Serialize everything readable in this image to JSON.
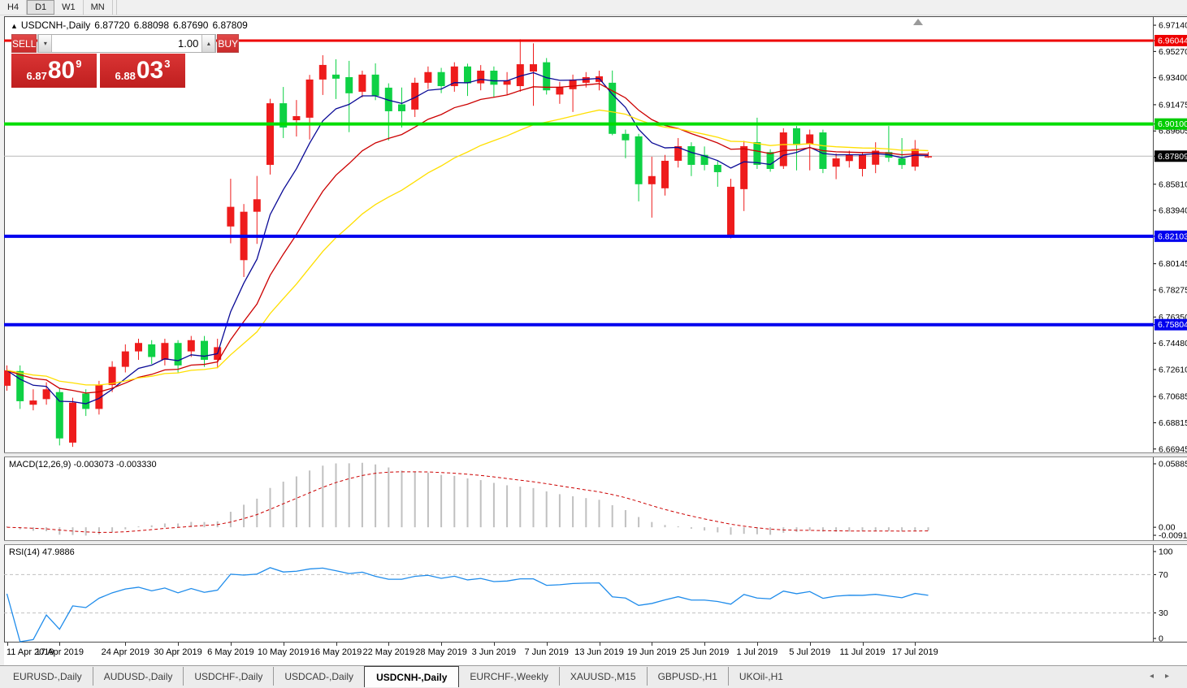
{
  "toolbar": {
    "periods": [
      {
        "label": "H4",
        "active": false
      },
      {
        "label": "D1",
        "active": true
      },
      {
        "label": "W1",
        "active": false
      },
      {
        "label": "MN",
        "active": false
      }
    ]
  },
  "chart_header": {
    "collapse_glyph": "▲",
    "symbol": "USDCNH-,Daily",
    "open": "6.87720",
    "high": "6.88098",
    "low": "6.87690",
    "close": "6.87809"
  },
  "one_click": {
    "sell_label": "SELL",
    "buy_label": "BUY",
    "volume": "1.00",
    "down_glyph": "▾",
    "up_glyph": "▴",
    "sell_price_small": "6.87",
    "sell_price_big": "80",
    "sell_price_sup": "9",
    "buy_price_small": "6.88",
    "buy_price_big": "03",
    "buy_price_sup": "3"
  },
  "tabs": {
    "items": [
      {
        "label": "EURUSD-,Daily",
        "active": false
      },
      {
        "label": "AUDUSD-,Daily",
        "active": false
      },
      {
        "label": "USDCHF-,Daily",
        "active": false
      },
      {
        "label": "USDCAD-,Daily",
        "active": false
      },
      {
        "label": "USDCNH-,Daily",
        "active": true
      },
      {
        "label": "EURCHF-,Weekly",
        "active": false
      },
      {
        "label": "XAUUSD-,M15",
        "active": false
      },
      {
        "label": "GBPUSD-,H1",
        "active": false
      },
      {
        "label": "UKOil-,H1",
        "active": false
      }
    ],
    "scroll_left_glyph": "◂",
    "scroll_right_glyph": "▸"
  },
  "chart_data": {
    "type": "candlestick",
    "symbol": "USDCNH",
    "timeframe": "Daily",
    "color_scheme": {
      "up_candle": "#ee1c1c",
      "down_candle": "#0ed145",
      "background": "#ffffff",
      "current_price_line": "#b8b8b8",
      "macd_histogram": "#c0c0c0",
      "macd_signal": "#cc0000",
      "rsi_line": "#1f8ceb",
      "rsi_levels": "#c0c0c0",
      "shift_marker": "#9a9a9a"
    },
    "price_scale": {
      "top": 6.972,
      "bottom": 6.667,
      "labels": [
        "6.97140",
        "6.95270",
        "6.93400",
        "6.91475",
        "6.89605",
        "6.85810",
        "6.83940",
        "6.80145",
        "6.78275",
        "6.76350",
        "6.74480",
        "6.72610",
        "6.70685",
        "6.68815",
        "6.66945"
      ],
      "tags": [
        {
          "value": 6.96044,
          "text": "6.96044",
          "color": "#ee0000"
        },
        {
          "value": 6.901,
          "text": "6.90100",
          "color": "#00cc00"
        },
        {
          "value": 6.87809,
          "text": "6.87809",
          "color": "#000000"
        },
        {
          "value": 6.82103,
          "text": "6.82103",
          "color": "#0000ee"
        },
        {
          "value": 6.75804,
          "text": "6.75804",
          "color": "#0000ee"
        }
      ]
    },
    "hlines": [
      {
        "value": 6.96044,
        "color": "#ee0000",
        "width": 3
      },
      {
        "value": 6.901,
        "color": "#00dd00",
        "width": 4
      },
      {
        "value": 6.82103,
        "color": "#0000ee",
        "width": 4
      },
      {
        "value": 6.75804,
        "color": "#0000ee",
        "width": 4
      }
    ],
    "current_price": 6.87809,
    "moving_averages": [
      {
        "type": "ema",
        "period": 6,
        "color": "#0a0a96"
      },
      {
        "type": "ema",
        "period": 13,
        "color": "#cc0000"
      },
      {
        "type": "ema",
        "period": 24,
        "color": "#ffdf00"
      }
    ],
    "candles": [
      [
        6.7145,
        6.729,
        6.711,
        6.7255
      ],
      [
        6.725,
        6.729,
        6.698,
        6.7035
      ],
      [
        6.701,
        6.712,
        6.697,
        6.704
      ],
      [
        6.705,
        6.717,
        6.701,
        6.712
      ],
      [
        6.71,
        6.713,
        6.672,
        6.677
      ],
      [
        6.674,
        6.706,
        6.671,
        6.7025
      ],
      [
        6.709,
        6.712,
        6.693,
        6.698
      ],
      [
        6.698,
        6.718,
        6.694,
        6.715
      ],
      [
        6.715,
        6.732,
        6.71,
        6.728
      ],
      [
        6.728,
        6.744,
        6.724,
        6.739
      ],
      [
        6.739,
        6.748,
        6.733,
        6.745
      ],
      [
        6.744,
        6.747,
        6.73,
        6.735
      ],
      [
        6.733,
        6.748,
        6.729,
        6.745
      ],
      [
        6.745,
        6.747,
        6.724,
        6.729
      ],
      [
        6.739,
        6.75,
        6.735,
        6.747
      ],
      [
        6.7465,
        6.75,
        6.728,
        6.733
      ],
      [
        6.733,
        6.748,
        6.727,
        6.742
      ],
      [
        6.828,
        6.862,
        6.816,
        6.842
      ],
      [
        6.804,
        6.844,
        6.792,
        6.8385
      ],
      [
        6.8385,
        6.864,
        6.8156,
        6.8474
      ],
      [
        6.8719,
        6.919,
        6.865,
        6.9158
      ],
      [
        6.9158,
        6.9274,
        6.891,
        6.8985
      ],
      [
        6.9037,
        6.9181,
        6.8921,
        6.9066
      ],
      [
        6.9055,
        6.936,
        6.89,
        6.9327
      ],
      [
        6.9327,
        6.95,
        6.9217,
        6.9431
      ],
      [
        6.9362,
        6.9471,
        6.9188,
        6.9333
      ],
      [
        6.9344,
        6.946,
        6.8952,
        6.9229
      ],
      [
        6.924,
        6.939,
        6.92,
        6.9362
      ],
      [
        6.9362,
        6.9442,
        6.918,
        6.9211
      ],
      [
        6.9269,
        6.93,
        6.8893,
        6.9101
      ],
      [
        6.915,
        6.927,
        6.8985,
        6.9101
      ],
      [
        6.9113,
        6.934,
        6.906,
        6.9304
      ],
      [
        6.9304,
        6.942,
        6.926,
        6.938
      ],
      [
        6.938,
        6.941,
        6.923,
        6.928
      ],
      [
        6.928,
        6.945,
        6.924,
        6.942
      ],
      [
        6.942,
        6.944,
        6.921,
        6.93
      ],
      [
        6.93,
        6.943,
        6.925,
        6.939
      ],
      [
        6.939,
        6.942,
        6.92,
        6.929
      ],
      [
        6.929,
        6.938,
        6.922,
        6.932
      ],
      [
        6.928,
        6.9614,
        6.924,
        6.9436
      ],
      [
        6.9384,
        6.9585,
        6.914,
        6.9436
      ],
      [
        6.945,
        6.948,
        6.922,
        6.925
      ],
      [
        6.922,
        6.931,
        6.9154,
        6.9275
      ],
      [
        6.9258,
        6.9362,
        6.9096,
        6.9327
      ],
      [
        6.9304,
        6.938,
        6.927,
        6.9344
      ],
      [
        6.931,
        6.939,
        6.925,
        6.935
      ],
      [
        6.9304,
        6.9391,
        6.893,
        6.894
      ],
      [
        6.894,
        6.897,
        6.8766,
        6.8894
      ],
      [
        6.8922,
        6.894,
        6.8459,
        6.8581
      ],
      [
        6.8581,
        6.8777,
        6.8343,
        6.8639
      ],
      [
        6.8552,
        6.879,
        6.85,
        6.8748
      ],
      [
        6.8748,
        6.891,
        6.87,
        6.8852
      ],
      [
        6.8852,
        6.888,
        6.8639,
        6.8719
      ],
      [
        6.879,
        6.885,
        6.868,
        6.8719
      ],
      [
        6.8719,
        6.875,
        6.8563,
        6.8667
      ],
      [
        6.8206,
        6.862,
        6.8195,
        6.8563
      ],
      [
        6.8546,
        6.889,
        6.839,
        6.8852
      ],
      [
        6.8881,
        6.9055,
        6.869,
        6.8719
      ],
      [
        6.881,
        6.883,
        6.867,
        6.869
      ],
      [
        6.871,
        6.898,
        6.869,
        6.895
      ],
      [
        6.898,
        6.8996,
        6.868,
        6.886
      ],
      [
        6.8867,
        6.897,
        6.868,
        6.8936
      ],
      [
        6.895,
        6.897,
        6.866,
        6.869
      ],
      [
        6.8706,
        6.88,
        6.8617,
        6.8765
      ],
      [
        6.8746,
        6.882,
        6.87,
        6.8793
      ],
      [
        6.869,
        6.881,
        6.8636,
        6.879
      ],
      [
        6.872,
        6.888,
        6.866,
        6.882
      ],
      [
        6.881,
        6.8996,
        6.874,
        6.877
      ],
      [
        6.8765,
        6.891,
        6.869,
        6.8718
      ],
      [
        6.8706,
        6.8896,
        6.8677,
        6.8833
      ],
      [
        6.8772,
        6.88098,
        6.8769,
        6.87809
      ]
    ],
    "date_ticks": [
      {
        "index": 0,
        "label": "11 Apr 2019"
      },
      {
        "index": 4,
        "label": "17 Apr 2019"
      },
      {
        "index": 9,
        "label": "24 Apr 2019"
      },
      {
        "index": 13,
        "label": "30 Apr 2019"
      },
      {
        "index": 17,
        "label": "6 May 2019"
      },
      {
        "index": 21,
        "label": "10 May 2019"
      },
      {
        "index": 25,
        "label": "16 May 2019"
      },
      {
        "index": 29,
        "label": "22 May 2019"
      },
      {
        "index": 33,
        "label": "28 May 2019"
      },
      {
        "index": 37,
        "label": "3 Jun 2019"
      },
      {
        "index": 41,
        "label": "7 Jun 2019"
      },
      {
        "index": 45,
        "label": "13 Jun 2019"
      },
      {
        "index": 49,
        "label": "19 Jun 2019"
      },
      {
        "index": 53,
        "label": "25 Jun 2019"
      },
      {
        "index": 57,
        "label": "1 Jul 2019"
      },
      {
        "index": 61,
        "label": "5 Jul 2019"
      },
      {
        "index": 65,
        "label": "11 Jul 2019"
      },
      {
        "index": 69,
        "label": "17 Jul 2019"
      }
    ],
    "macd": {
      "label": "MACD(12,26,9)",
      "values": "-0.003073 -0.003330",
      "fast": 12,
      "slow": 26,
      "signal": 9,
      "scale_top": 0.058851,
      "scale_bottom": -0.009116,
      "axis_labels": [
        {
          "value": 0.058851,
          "text": "0.058851"
        },
        {
          "value": 0,
          "text": "0.00"
        },
        {
          "value": -0.009116,
          "text": "-0.009116"
        }
      ]
    },
    "rsi": {
      "label": "RSI(14)",
      "value": "47.9886",
      "period": 14,
      "levels": [
        70,
        30
      ],
      "axis_labels": [
        {
          "value": 100,
          "text": "100"
        },
        {
          "value": 70,
          "text": "70"
        },
        {
          "value": 30,
          "text": "30"
        },
        {
          "value": 0,
          "text": "0"
        }
      ]
    }
  }
}
